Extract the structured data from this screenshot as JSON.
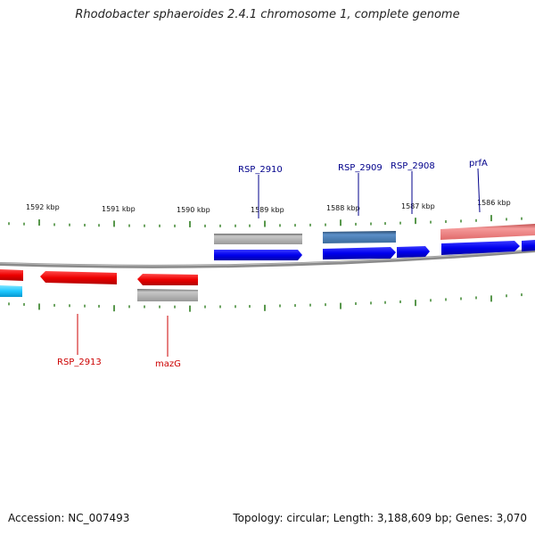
{
  "title": "Rhodobacter sphaeroides 2.4.1 chromosome 1, complete genome",
  "footer": {
    "accession": "Accession: NC_007493",
    "summary": "Topology: circular; Length: 3,188,609 bp; Genes: 3,070"
  },
  "ticks": {
    "color": "#2e7d1f",
    "labels": [
      "1592 kbp",
      "1591 kbp",
      "1590 kbp",
      "1589 kbp",
      "1588 kbp",
      "1587 kbp",
      "1586 kbp"
    ]
  },
  "genes_top": [
    {
      "name": "RSP_2910",
      "color": "#00008b"
    },
    {
      "name": "RSP_2909",
      "color": "#00008b"
    },
    {
      "name": "RSP_2908",
      "color": "#00008b"
    },
    {
      "name": "prfA",
      "color": "#00008b"
    }
  ],
  "genes_bottom": [
    {
      "name": "RSP_2913",
      "color": "#cc0000"
    },
    {
      "name": "mazG",
      "color": "#cc0000"
    }
  ],
  "colors": {
    "forward_cds": "#0000ee",
    "reverse_cds": "#ee0000",
    "backbone": "#888888",
    "grey_feature": "#b8b8b8",
    "steelblue_feature": "#4a7fb5",
    "pink_feature": "#f08080",
    "cyan_feature": "#1ec8ff"
  }
}
